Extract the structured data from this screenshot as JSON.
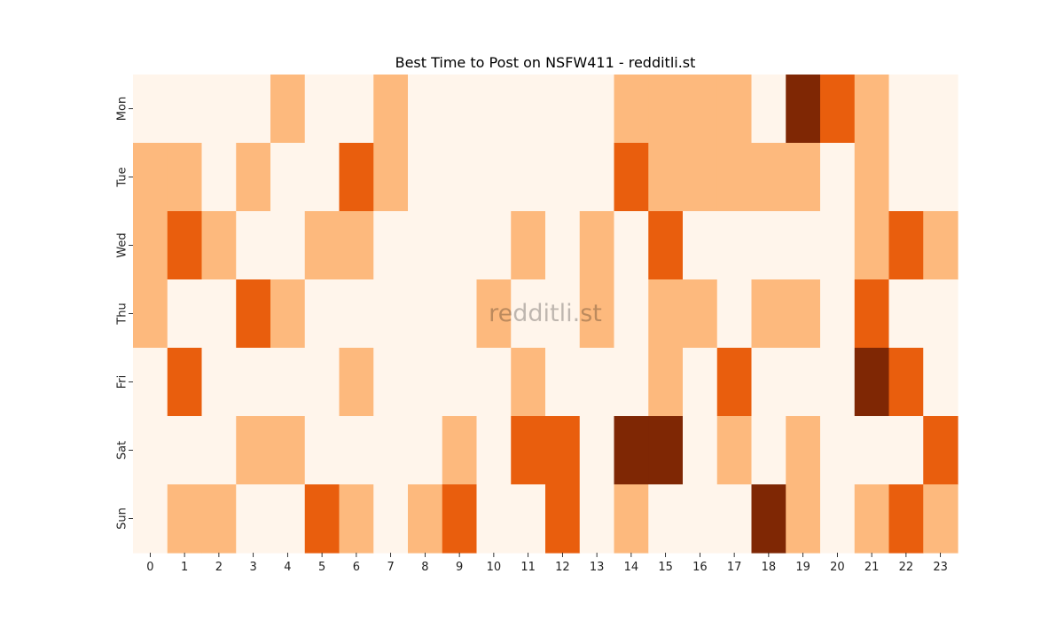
{
  "chart_data": {
    "type": "heatmap",
    "title": "Best Time to Post on NSFW411 - redditli.st",
    "watermark": "redditli.st",
    "x_categories": [
      "0",
      "1",
      "2",
      "3",
      "4",
      "5",
      "6",
      "7",
      "8",
      "9",
      "10",
      "11",
      "12",
      "13",
      "14",
      "15",
      "16",
      "17",
      "18",
      "19",
      "20",
      "21",
      "22",
      "23"
    ],
    "y_categories": [
      "Mon",
      "Tue",
      "Wed",
      "Thu",
      "Fri",
      "Sat",
      "Sun"
    ],
    "xlabel": "",
    "ylabel": "",
    "value_range": [
      0,
      3
    ],
    "colorbar": false,
    "colors": {
      "level_0": "#fff5eb",
      "level_1": "#fdb97d",
      "level_2": "#e95e0d",
      "level_3": "#7f2704"
    },
    "values": [
      [
        0,
        0,
        0,
        0,
        1,
        0,
        0,
        1,
        0,
        0,
        0,
        0,
        0,
        0,
        1,
        1,
        1,
        1,
        0,
        3,
        2,
        1,
        0,
        0
      ],
      [
        1,
        1,
        0,
        1,
        0,
        0,
        2,
        1,
        0,
        0,
        0,
        0,
        0,
        0,
        2,
        1,
        1,
        1,
        1,
        1,
        0,
        1,
        0,
        0
      ],
      [
        1,
        2,
        1,
        0,
        0,
        1,
        1,
        0,
        0,
        0,
        0,
        1,
        0,
        1,
        0,
        2,
        0,
        0,
        0,
        0,
        0,
        1,
        2,
        1
      ],
      [
        1,
        0,
        0,
        2,
        1,
        0,
        0,
        0,
        0,
        0,
        1,
        0,
        0,
        1,
        0,
        1,
        1,
        0,
        1,
        1,
        0,
        2,
        0,
        0
      ],
      [
        0,
        2,
        0,
        0,
        0,
        0,
        1,
        0,
        0,
        0,
        0,
        1,
        0,
        0,
        0,
        1,
        0,
        2,
        0,
        0,
        0,
        3,
        2,
        0
      ],
      [
        0,
        0,
        0,
        1,
        1,
        0,
        0,
        0,
        0,
        1,
        0,
        2,
        2,
        0,
        3,
        3,
        0,
        1,
        0,
        1,
        0,
        0,
        0,
        2
      ],
      [
        0,
        1,
        1,
        0,
        0,
        2,
        1,
        0,
        1,
        2,
        0,
        0,
        2,
        0,
        1,
        0,
        0,
        0,
        3,
        1,
        0,
        1,
        2,
        1
      ]
    ]
  }
}
